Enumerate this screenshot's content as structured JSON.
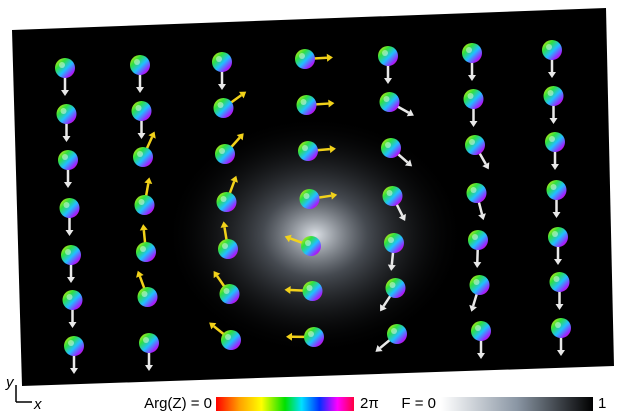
{
  "axes": {
    "y_label": "y",
    "x_label": "x"
  },
  "colorbars": [
    {
      "label_start": "Arg(Z) = 0",
      "label_end": "2π"
    },
    {
      "label_start": "F = 0",
      "label_end": "1"
    }
  ]
}
